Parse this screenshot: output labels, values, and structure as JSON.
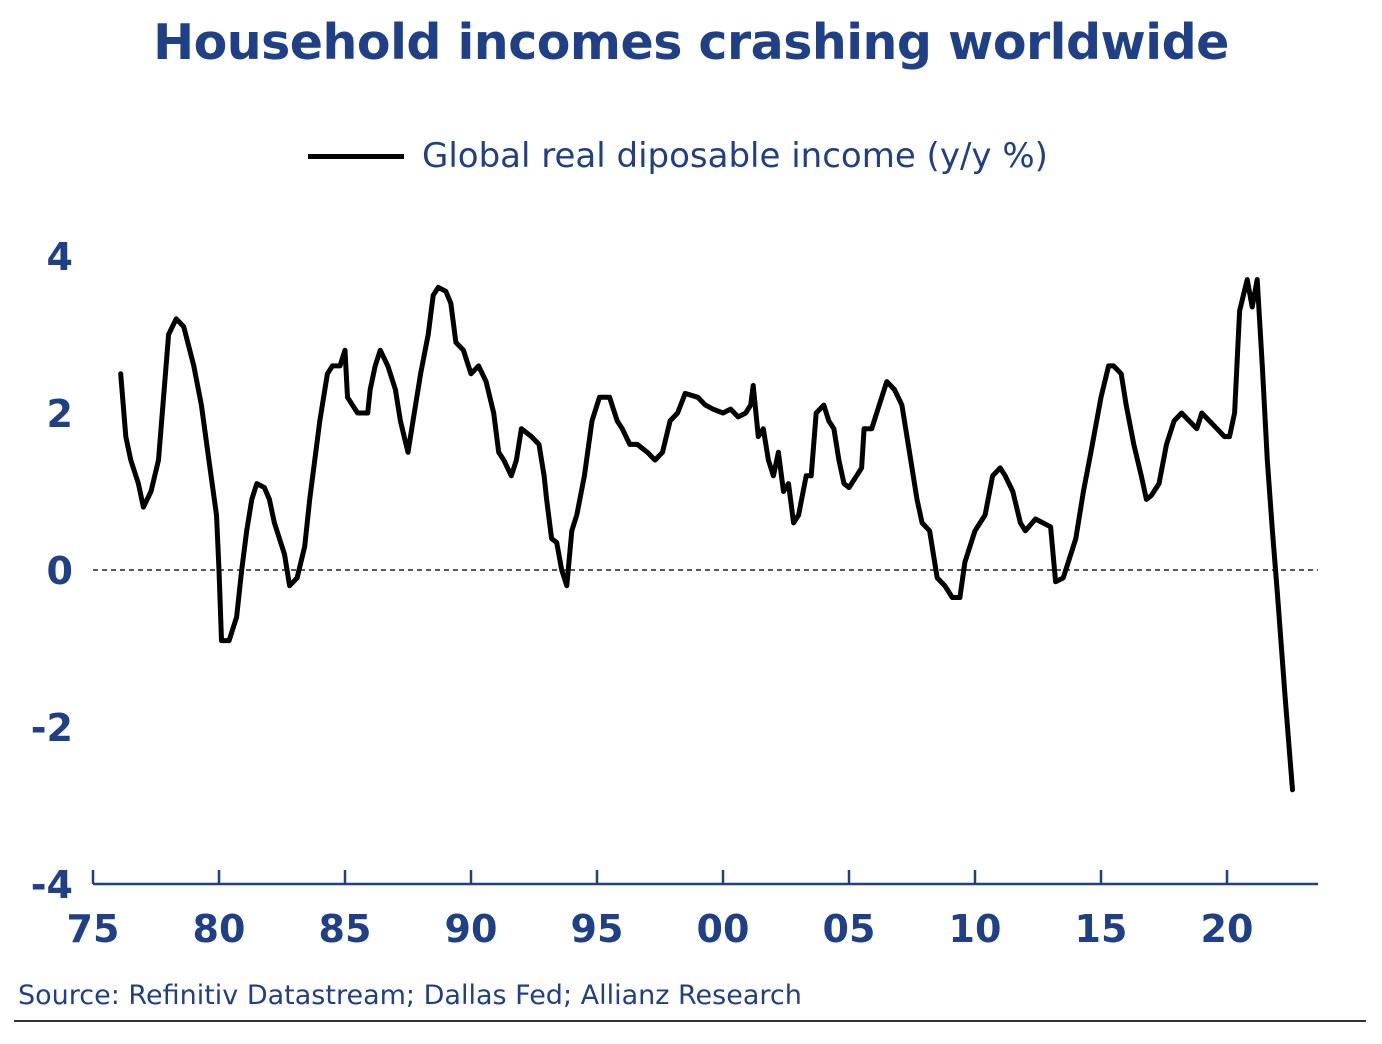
{
  "chart_data": {
    "type": "line",
    "title": "Household incomes crashing worldwide",
    "xlabel": "",
    "ylabel": "",
    "xlim": [
      1975,
      2024
    ],
    "ylim": [
      -4,
      4.5
    ],
    "x_ticks": [
      1975,
      1980,
      1985,
      1990,
      1995,
      2000,
      2005,
      2010,
      2015,
      2020
    ],
    "x_tick_labels": [
      "75",
      "80",
      "85",
      "90",
      "95",
      "00",
      "05",
      "10",
      "15",
      "20"
    ],
    "y_ticks": [
      -4,
      -2,
      0,
      2,
      4
    ],
    "y_tick_labels": [
      "-4",
      "-2",
      "0",
      "2",
      "4"
    ],
    "reference_line": 0,
    "grid": false,
    "legend_position": "top-center",
    "line_color": "#000000",
    "text_color": "#1f3f87",
    "series": [
      {
        "name": "Global real diposable income (y/y %)",
        "points": [
          [
            1976.1,
            2.5
          ],
          [
            1976.3,
            1.7
          ],
          [
            1976.5,
            1.4
          ],
          [
            1976.8,
            1.1
          ],
          [
            1977.0,
            0.8
          ],
          [
            1977.3,
            1.0
          ],
          [
            1977.6,
            1.4
          ],
          [
            1978.0,
            3.0
          ],
          [
            1978.3,
            3.2
          ],
          [
            1978.6,
            3.1
          ],
          [
            1979.0,
            2.6
          ],
          [
            1979.3,
            2.1
          ],
          [
            1979.6,
            1.4
          ],
          [
            1979.9,
            0.7
          ],
          [
            1980.0,
            0.0
          ],
          [
            1980.1,
            -0.9
          ],
          [
            1980.4,
            -0.9
          ],
          [
            1980.7,
            -0.6
          ],
          [
            1980.9,
            0.0
          ],
          [
            1981.1,
            0.5
          ],
          [
            1981.3,
            0.9
          ],
          [
            1981.5,
            1.1
          ],
          [
            1981.8,
            1.05
          ],
          [
            1982.0,
            0.9
          ],
          [
            1982.2,
            0.6
          ],
          [
            1982.6,
            0.2
          ],
          [
            1982.8,
            -0.2
          ],
          [
            1983.1,
            -0.1
          ],
          [
            1983.4,
            0.3
          ],
          [
            1983.6,
            0.9
          ],
          [
            1984.0,
            1.9
          ],
          [
            1984.3,
            2.5
          ],
          [
            1984.5,
            2.6
          ],
          [
            1984.8,
            2.6
          ],
          [
            1985.0,
            2.8
          ],
          [
            1985.1,
            2.2
          ],
          [
            1985.5,
            2.0
          ],
          [
            1985.9,
            2.0
          ],
          [
            1986.0,
            2.3
          ],
          [
            1986.2,
            2.6
          ],
          [
            1986.4,
            2.8
          ],
          [
            1986.7,
            2.6
          ],
          [
            1987.0,
            2.3
          ],
          [
            1987.2,
            1.9
          ],
          [
            1987.5,
            1.5
          ],
          [
            1987.7,
            1.9
          ],
          [
            1988.0,
            2.5
          ],
          [
            1988.3,
            3.0
          ],
          [
            1988.5,
            3.5
          ],
          [
            1988.7,
            3.6
          ],
          [
            1989.0,
            3.55
          ],
          [
            1989.2,
            3.4
          ],
          [
            1989.4,
            2.9
          ],
          [
            1989.7,
            2.8
          ],
          [
            1990.0,
            2.5
          ],
          [
            1990.3,
            2.6
          ],
          [
            1990.6,
            2.4
          ],
          [
            1990.9,
            2.0
          ],
          [
            1991.1,
            1.5
          ],
          [
            1991.3,
            1.4
          ],
          [
            1991.6,
            1.2
          ],
          [
            1991.8,
            1.4
          ],
          [
            1992.0,
            1.8
          ],
          [
            1992.4,
            1.7
          ],
          [
            1992.7,
            1.6
          ],
          [
            1992.9,
            1.2
          ],
          [
            1993.0,
            0.9
          ],
          [
            1993.2,
            0.4
          ],
          [
            1993.4,
            0.35
          ],
          [
            1993.6,
            0.0
          ],
          [
            1993.8,
            -0.2
          ],
          [
            1994.0,
            0.5
          ],
          [
            1994.2,
            0.7
          ],
          [
            1994.5,
            1.2
          ],
          [
            1994.8,
            1.9
          ],
          [
            1995.1,
            2.2
          ],
          [
            1995.5,
            2.2
          ],
          [
            1995.8,
            1.9
          ],
          [
            1996.0,
            1.8
          ],
          [
            1996.3,
            1.6
          ],
          [
            1996.6,
            1.6
          ],
          [
            1997.0,
            1.5
          ],
          [
            1997.3,
            1.4
          ],
          [
            1997.6,
            1.5
          ],
          [
            1997.9,
            1.9
          ],
          [
            1998.2,
            2.0
          ],
          [
            1998.5,
            2.25
          ],
          [
            1999.0,
            2.2
          ],
          [
            1999.3,
            2.1
          ],
          [
            1999.6,
            2.05
          ],
          [
            2000.0,
            2.0
          ],
          [
            2000.3,
            2.05
          ],
          [
            2000.6,
            1.95
          ],
          [
            2000.9,
            2.0
          ],
          [
            2001.1,
            2.1
          ],
          [
            2001.2,
            2.35
          ],
          [
            2001.4,
            1.7
          ],
          [
            2001.6,
            1.8
          ],
          [
            2001.8,
            1.4
          ],
          [
            2002.0,
            1.2
          ],
          [
            2002.2,
            1.5
          ],
          [
            2002.4,
            1.0
          ],
          [
            2002.6,
            1.1
          ],
          [
            2002.8,
            0.6
          ],
          [
            2003.0,
            0.7
          ],
          [
            2003.3,
            1.2
          ],
          [
            2003.5,
            1.2
          ],
          [
            2003.7,
            2.0
          ],
          [
            2004.0,
            2.1
          ],
          [
            2004.2,
            1.9
          ],
          [
            2004.4,
            1.8
          ],
          [
            2004.6,
            1.4
          ],
          [
            2004.8,
            1.1
          ],
          [
            2005.0,
            1.05
          ],
          [
            2005.3,
            1.2
          ],
          [
            2005.5,
            1.3
          ],
          [
            2005.6,
            1.8
          ],
          [
            2005.9,
            1.8
          ],
          [
            2006.2,
            2.1
          ],
          [
            2006.5,
            2.4
          ],
          [
            2006.8,
            2.3
          ],
          [
            2007.1,
            2.1
          ],
          [
            2007.4,
            1.5
          ],
          [
            2007.7,
            0.9
          ],
          [
            2007.9,
            0.6
          ],
          [
            2008.2,
            0.5
          ],
          [
            2008.5,
            -0.1
          ],
          [
            2008.8,
            -0.2
          ],
          [
            2009.1,
            -0.35
          ],
          [
            2009.4,
            -0.35
          ],
          [
            2009.6,
            0.1
          ],
          [
            2010.0,
            0.5
          ],
          [
            2010.4,
            0.7
          ],
          [
            2010.7,
            1.2
          ],
          [
            2011.0,
            1.3
          ],
          [
            2011.2,
            1.2
          ],
          [
            2011.5,
            1.0
          ],
          [
            2011.8,
            0.6
          ],
          [
            2012.0,
            0.5
          ],
          [
            2012.4,
            0.65
          ],
          [
            2012.7,
            0.6
          ],
          [
            2013.0,
            0.55
          ],
          [
            2013.2,
            -0.15
          ],
          [
            2013.5,
            -0.1
          ],
          [
            2013.8,
            0.2
          ],
          [
            2014.0,
            0.4
          ],
          [
            2014.3,
            1.0
          ],
          [
            2014.6,
            1.5
          ],
          [
            2015.0,
            2.2
          ],
          [
            2015.3,
            2.6
          ],
          [
            2015.5,
            2.6
          ],
          [
            2015.8,
            2.5
          ],
          [
            2016.0,
            2.1
          ],
          [
            2016.3,
            1.6
          ],
          [
            2016.6,
            1.2
          ],
          [
            2016.8,
            0.9
          ],
          [
            2017.0,
            0.95
          ],
          [
            2017.3,
            1.1
          ],
          [
            2017.6,
            1.6
          ],
          [
            2017.9,
            1.9
          ],
          [
            2018.2,
            2.0
          ],
          [
            2018.5,
            1.9
          ],
          [
            2018.8,
            1.8
          ],
          [
            2019.0,
            2.0
          ],
          [
            2019.3,
            1.9
          ],
          [
            2019.6,
            1.8
          ],
          [
            2019.9,
            1.7
          ],
          [
            2020.1,
            1.7
          ],
          [
            2020.3,
            2.0
          ],
          [
            2020.5,
            3.3
          ],
          [
            2020.8,
            3.7
          ],
          [
            2021.0,
            3.35
          ],
          [
            2021.2,
            3.7
          ],
          [
            2021.4,
            2.6
          ],
          [
            2021.6,
            1.4
          ],
          [
            2021.8,
            0.5
          ],
          [
            2022.0,
            -0.3
          ],
          [
            2022.3,
            -1.6
          ],
          [
            2022.6,
            -2.8
          ]
        ]
      }
    ],
    "source": "Source: Refinitiv Datastream; Dallas Fed; Allianz Research"
  }
}
